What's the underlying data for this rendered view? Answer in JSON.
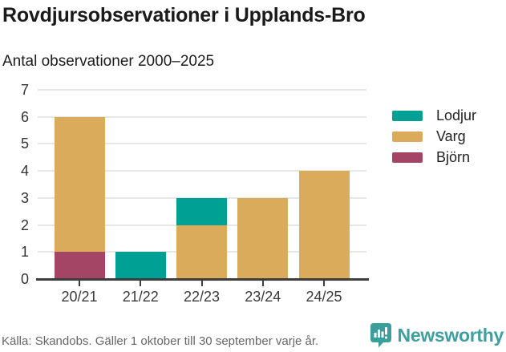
{
  "header": {
    "title": "Rovdjursobservationer i Upplands-Bro",
    "subtitle": "Antal observationer 2000–2025"
  },
  "chart_data": {
    "type": "bar",
    "stacked": true,
    "title": "Rovdjursobservationer i Upplands-Bro",
    "subtitle": "Antal observationer 2000–2025",
    "categories": [
      "20/21",
      "21/22",
      "22/23",
      "23/24",
      "24/25"
    ],
    "series": [
      {
        "name": "Lodjur",
        "color": "#00a094",
        "values": [
          0,
          1,
          1,
          0,
          0
        ]
      },
      {
        "name": "Varg",
        "color": "#d9ab5b",
        "values": [
          5,
          0,
          2,
          3,
          4
        ]
      },
      {
        "name": "Björn",
        "color": "#a54565",
        "values": [
          1,
          0,
          0,
          0,
          0
        ]
      }
    ],
    "stack_order_bottom_to_top": [
      "Björn",
      "Varg",
      "Lodjur"
    ],
    "totals": [
      6,
      1,
      3,
      3,
      4
    ],
    "yticks": [
      0,
      1,
      2,
      3,
      4,
      5,
      6,
      7
    ],
    "ylim": [
      0,
      7
    ],
    "xlabel": "",
    "ylabel": "",
    "grid": "horizontal",
    "legend_position": "right"
  },
  "legend": {
    "items": [
      {
        "label": "Lodjur",
        "color": "#00a094"
      },
      {
        "label": "Varg",
        "color": "#d9ab5b"
      },
      {
        "label": "Björn",
        "color": "#a54565"
      }
    ]
  },
  "footer": {
    "source": "Källa: Skandobs. Gäller 1 oktober till 30 september varje år.",
    "brand": "Newsworthy"
  },
  "colors": {
    "lodjur_teal": "#00a094",
    "varg_gold": "#d9ab5b",
    "bjorn_maroon": "#a54565",
    "brand_teal": "#3f9ea0",
    "axis_dark": "#3d3d3d",
    "gridline_gray": "#e7e7e7",
    "source_gray": "#666666"
  }
}
